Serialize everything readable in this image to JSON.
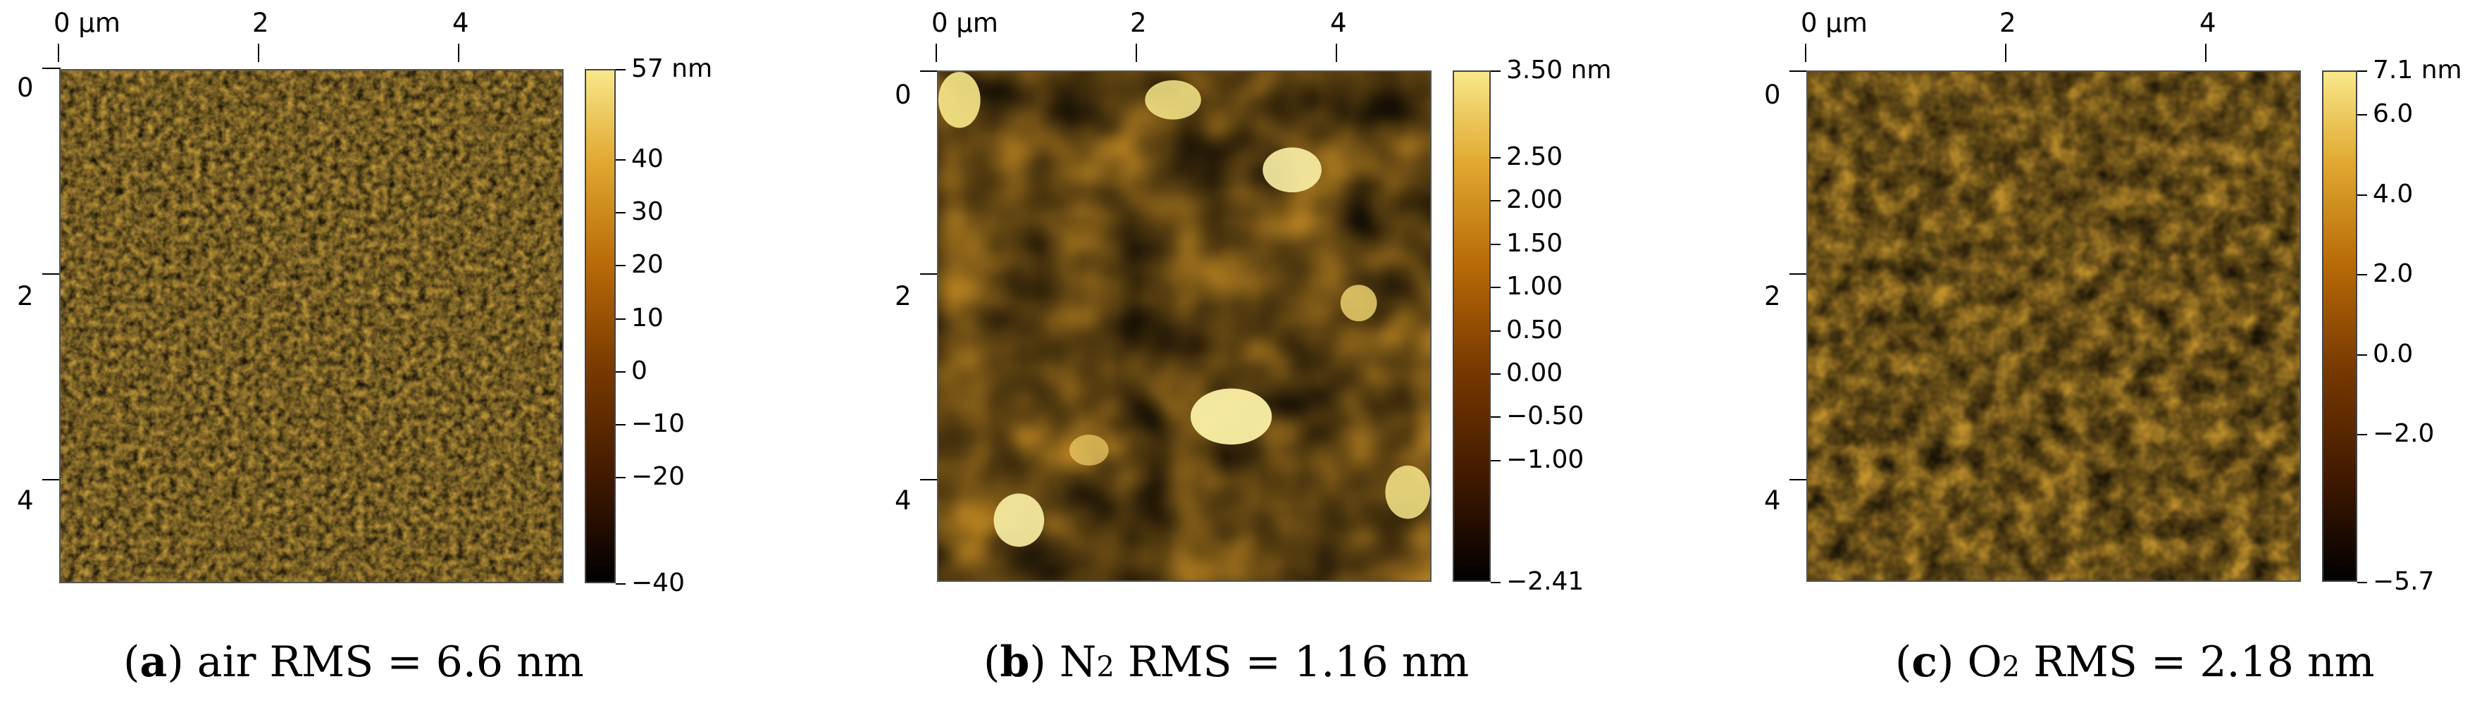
{
  "panels": [
    {
      "id": "a",
      "x_ticks": [
        "0 µm",
        "2",
        "4"
      ],
      "y_ticks": [
        "0",
        "2",
        "4"
      ],
      "colorbar_labels": [
        "57 nm",
        "40",
        "30",
        "20",
        "10",
        "0",
        "−10",
        "−20",
        "−40"
      ],
      "caption": {
        "letter": "a",
        "gas": "air",
        "gas_sub": "",
        "rms_text": "RMS = 6.6 nm"
      }
    },
    {
      "id": "b",
      "x_ticks": [
        "0 µm",
        "2",
        "4"
      ],
      "y_ticks": [
        "0",
        "2",
        "4"
      ],
      "colorbar_labels": [
        "3.50 nm",
        "2.50",
        "2.00",
        "1.50",
        "1.00",
        "0.50",
        "0.00",
        "−0.50",
        "−1.00",
        "−2.41"
      ],
      "caption": {
        "letter": "b",
        "gas": "N",
        "gas_sub": "2",
        "rms_text": "RMS = 1.16 nm"
      }
    },
    {
      "id": "c",
      "x_ticks": [
        "0 µm",
        "2",
        "4"
      ],
      "y_ticks": [
        "0",
        "2",
        "4"
      ],
      "colorbar_labels": [
        "7.1 nm",
        "6.0",
        "4.0",
        "2.0",
        "0.0",
        "−2.0",
        "−5.7"
      ],
      "caption": {
        "letter": "c",
        "gas": "O",
        "gas_sub": "2",
        "rms_text": "RMS = 2.18 nm"
      }
    }
  ],
  "chart_data": [
    {
      "type": "heatmap",
      "title": "",
      "xlabel": "µm",
      "ylabel": "",
      "x_ticks": [
        0,
        2,
        4
      ],
      "y_ticks": [
        0,
        2,
        4
      ],
      "colorbar": {
        "min": -40,
        "max": 57,
        "unit": "nm",
        "ticks": [
          57,
          40,
          30,
          20,
          10,
          0,
          -10,
          -20,
          -40
        ]
      },
      "colormap": [
        "#000000",
        "#3a1600",
        "#7a3a00",
        "#b86a08",
        "#e0a830",
        "#f8e88a"
      ],
      "rms_nm": 6.6
    },
    {
      "type": "heatmap",
      "title": "",
      "xlabel": "µm",
      "ylabel": "",
      "x_ticks": [
        0,
        2,
        4
      ],
      "y_ticks": [
        0,
        2,
        4
      ],
      "colorbar": {
        "min": -2.41,
        "max": 3.5,
        "unit": "nm",
        "ticks": [
          3.5,
          2.5,
          2.0,
          1.5,
          1.0,
          0.5,
          0.0,
          -0.5,
          -1.0,
          -2.41
        ]
      },
      "colormap": [
        "#000000",
        "#3a1600",
        "#7a3a00",
        "#b86a08",
        "#e0a830",
        "#f8e88a"
      ],
      "rms_nm": 1.16
    },
    {
      "type": "heatmap",
      "title": "",
      "xlabel": "µm",
      "ylabel": "",
      "x_ticks": [
        0,
        2,
        4
      ],
      "y_ticks": [
        0,
        2,
        4
      ],
      "colorbar": {
        "min": -5.7,
        "max": 7.1,
        "unit": "nm",
        "ticks": [
          7.1,
          6.0,
          4.0,
          2.0,
          0.0,
          -2.0,
          -5.7
        ]
      },
      "colormap": [
        "#000000",
        "#3a1600",
        "#7a3a00",
        "#b86a08",
        "#e0a830",
        "#f8e88a"
      ],
      "rms_nm": 2.18
    }
  ]
}
